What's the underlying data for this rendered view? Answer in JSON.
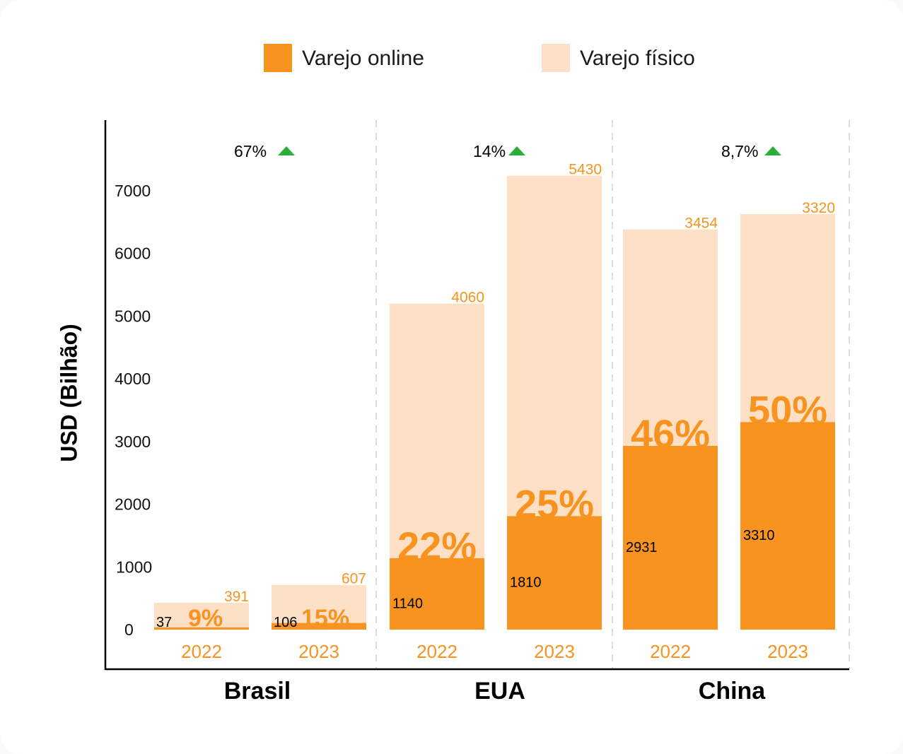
{
  "colors": {
    "online": "#f7931e",
    "physical": "#fde0c6",
    "growth_up": "#2fad3a",
    "axis": "#000000",
    "separator": "#d0d0d0"
  },
  "legend": [
    {
      "label": "Varejo online",
      "color": "#f7931e"
    },
    {
      "label": "Varejo físico",
      "color": "#fde0c6"
    }
  ],
  "chart_data": {
    "type": "bar",
    "stacked": true,
    "ylabel": "USD (Bilhão)",
    "ylim": [
      0,
      7000
    ],
    "yticks": [
      "0",
      "1000",
      "2000",
      "3000",
      "4000",
      "5000",
      "6000",
      "7000"
    ],
    "grid": false,
    "legend_position": "top",
    "groups": [
      {
        "country": "Brasil",
        "growth": "67%",
        "growth_icon": "triangle-up-icon",
        "bars": [
          {
            "year": "2022",
            "online": 37,
            "physical_label": "391",
            "share": "9%"
          },
          {
            "year": "2023",
            "online": 106,
            "physical_label": "607",
            "share": "15%"
          }
        ]
      },
      {
        "country": "EUA",
        "growth": "14%",
        "growth_icon": "triangle-up-icon",
        "bars": [
          {
            "year": "2022",
            "online": 1140,
            "physical_label": "4060",
            "share": "22%"
          },
          {
            "year": "2023",
            "online": 1810,
            "physical_label": "5430",
            "share": "25%"
          }
        ]
      },
      {
        "country": "China",
        "growth": "8,7%",
        "growth_icon": "triangle-up-icon",
        "bars": [
          {
            "year": "2022",
            "online": 2931,
            "physical_label": "3454",
            "share": "46%"
          },
          {
            "year": "2023",
            "online": 3310,
            "physical_label": "3320",
            "share": "50%"
          }
        ]
      }
    ]
  }
}
